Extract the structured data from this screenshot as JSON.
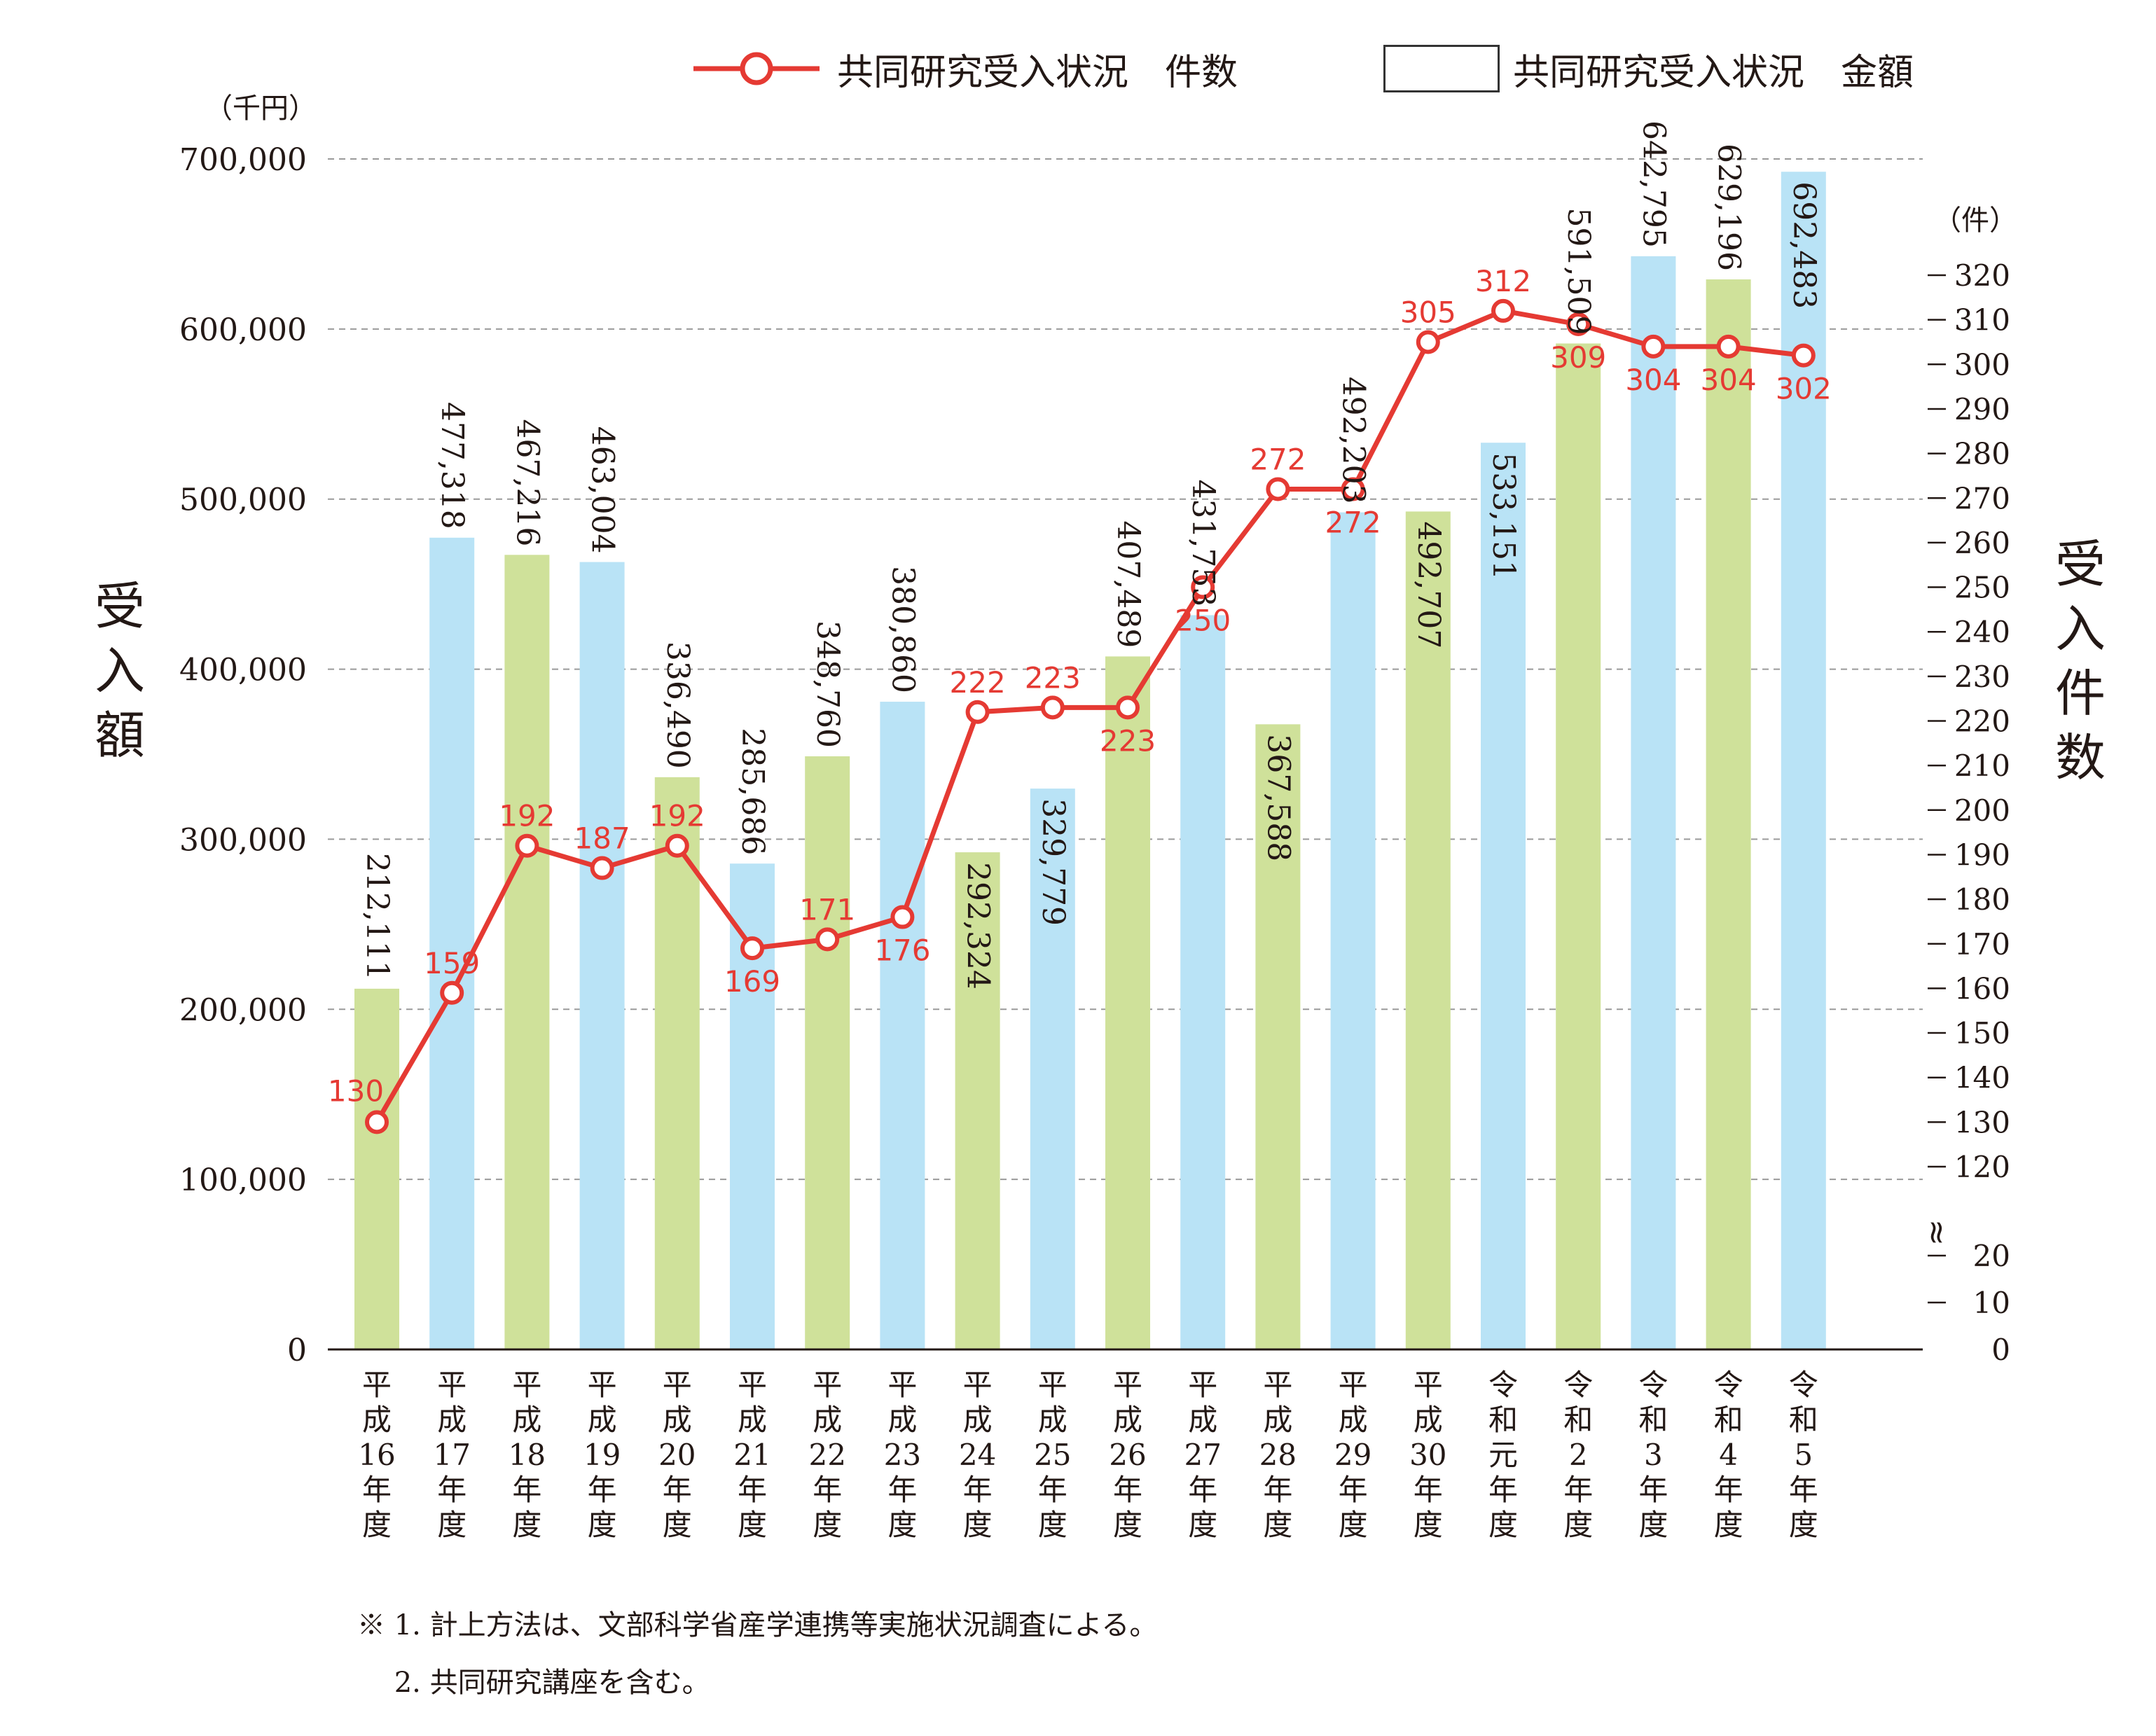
{
  "chart_data": {
    "type": "bar+line",
    "categories": [
      [
        "平",
        "成",
        "16",
        "年",
        "度"
      ],
      [
        "平",
        "成",
        "17",
        "年",
        "度"
      ],
      [
        "平",
        "成",
        "18",
        "年",
        "度"
      ],
      [
        "平",
        "成",
        "19",
        "年",
        "度"
      ],
      [
        "平",
        "成",
        "20",
        "年",
        "度"
      ],
      [
        "平",
        "成",
        "21",
        "年",
        "度"
      ],
      [
        "平",
        "成",
        "22",
        "年",
        "度"
      ],
      [
        "平",
        "成",
        "23",
        "年",
        "度"
      ],
      [
        "平",
        "成",
        "24",
        "年",
        "度"
      ],
      [
        "平",
        "成",
        "25",
        "年",
        "度"
      ],
      [
        "平",
        "成",
        "26",
        "年",
        "度"
      ],
      [
        "平",
        "成",
        "27",
        "年",
        "度"
      ],
      [
        "平",
        "成",
        "28",
        "年",
        "度"
      ],
      [
        "平",
        "成",
        "29",
        "年",
        "度"
      ],
      [
        "平",
        "成",
        "30",
        "年",
        "度"
      ],
      [
        "令",
        "和",
        "元",
        "年",
        "度"
      ],
      [
        "令",
        "和",
        "2",
        "年",
        "度"
      ],
      [
        "令",
        "和",
        "3",
        "年",
        "度"
      ],
      [
        "令",
        "和",
        "4",
        "年",
        "度"
      ],
      [
        "令",
        "和",
        "5",
        "年",
        "度"
      ]
    ],
    "bar_series": {
      "name": "共同研究受入状況　金額",
      "values": [
        212111,
        477318,
        467216,
        463004,
        336490,
        285686,
        348760,
        380860,
        292324,
        329779,
        407489,
        431753,
        367588,
        492203,
        492707,
        533151,
        591509,
        642795,
        629196,
        692483
      ],
      "labels": [
        "212,111",
        "477,318",
        "467,216",
        "463,004",
        "336,490",
        "285,686",
        "348,760",
        "380,860",
        "292,324",
        "329,779",
        "407,489",
        "431,753",
        "367,588",
        "492,203",
        "492,707",
        "533,151",
        "591,509",
        "642,795",
        "629,196",
        "692,483"
      ],
      "colors": [
        "#cfe19a",
        "#b9e3f6",
        "#cfe19a",
        "#b9e3f6",
        "#cfe19a",
        "#b9e3f6",
        "#cfe19a",
        "#b9e3f6",
        "#cfe19a",
        "#b9e3f6",
        "#cfe19a",
        "#b9e3f6",
        "#cfe19a",
        "#b9e3f6",
        "#cfe19a",
        "#b9e3f6",
        "#cfe19a",
        "#b9e3f6",
        "#cfe19a",
        "#b9e3f6"
      ],
      "label_inside": [
        false,
        false,
        false,
        false,
        false,
        false,
        false,
        false,
        true,
        true,
        false,
        false,
        true,
        false,
        true,
        true,
        false,
        false,
        false,
        true
      ]
    },
    "line_series": {
      "name": "共同研究受入状況　件数",
      "values": [
        130,
        159,
        192,
        187,
        192,
        169,
        171,
        176,
        222,
        223,
        223,
        250,
        272,
        272,
        305,
        312,
        309,
        304,
        304,
        302
      ],
      "label_pos": [
        "left",
        "above",
        "above",
        "above",
        "above",
        "below",
        "above",
        "below",
        "above",
        "above",
        "below",
        "below",
        "above",
        "below",
        "above",
        "above",
        "below",
        "below",
        "below",
        "below"
      ],
      "color": "#e53a33"
    },
    "left_axis": {
      "title": [
        "受",
        "入",
        "額"
      ],
      "unit": "（千円）",
      "ticks": [
        0,
        100000,
        200000,
        300000,
        400000,
        500000,
        600000,
        700000
      ],
      "tick_labels": [
        "0",
        "100,000",
        "200,000",
        "300,000",
        "400,000",
        "500,000",
        "600,000",
        "700,000"
      ],
      "range": [
        0,
        700000
      ],
      "grid": "dashed"
    },
    "right_axis": {
      "title": [
        "受",
        "入",
        "件",
        "数"
      ],
      "unit": "（件）",
      "ticks_low": [
        0,
        10,
        20
      ],
      "ticks_high": [
        120,
        130,
        140,
        150,
        160,
        170,
        180,
        190,
        200,
        210,
        220,
        230,
        240,
        250,
        260,
        270,
        280,
        290,
        300,
        310,
        320
      ],
      "break_symbol": "≈",
      "break_between": [
        20,
        120
      ]
    },
    "legend": [
      {
        "label": "共同研究受入状況　件数",
        "type": "line-marker",
        "color": "#e53a33"
      },
      {
        "label": "共同研究受入状況　金額",
        "type": "box"
      }
    ]
  },
  "notes": [
    "※ 1. 計上方法は、文部科学省産学連携等実施状況調査による。",
    "　 2. 共同研究講座を含む。"
  ]
}
